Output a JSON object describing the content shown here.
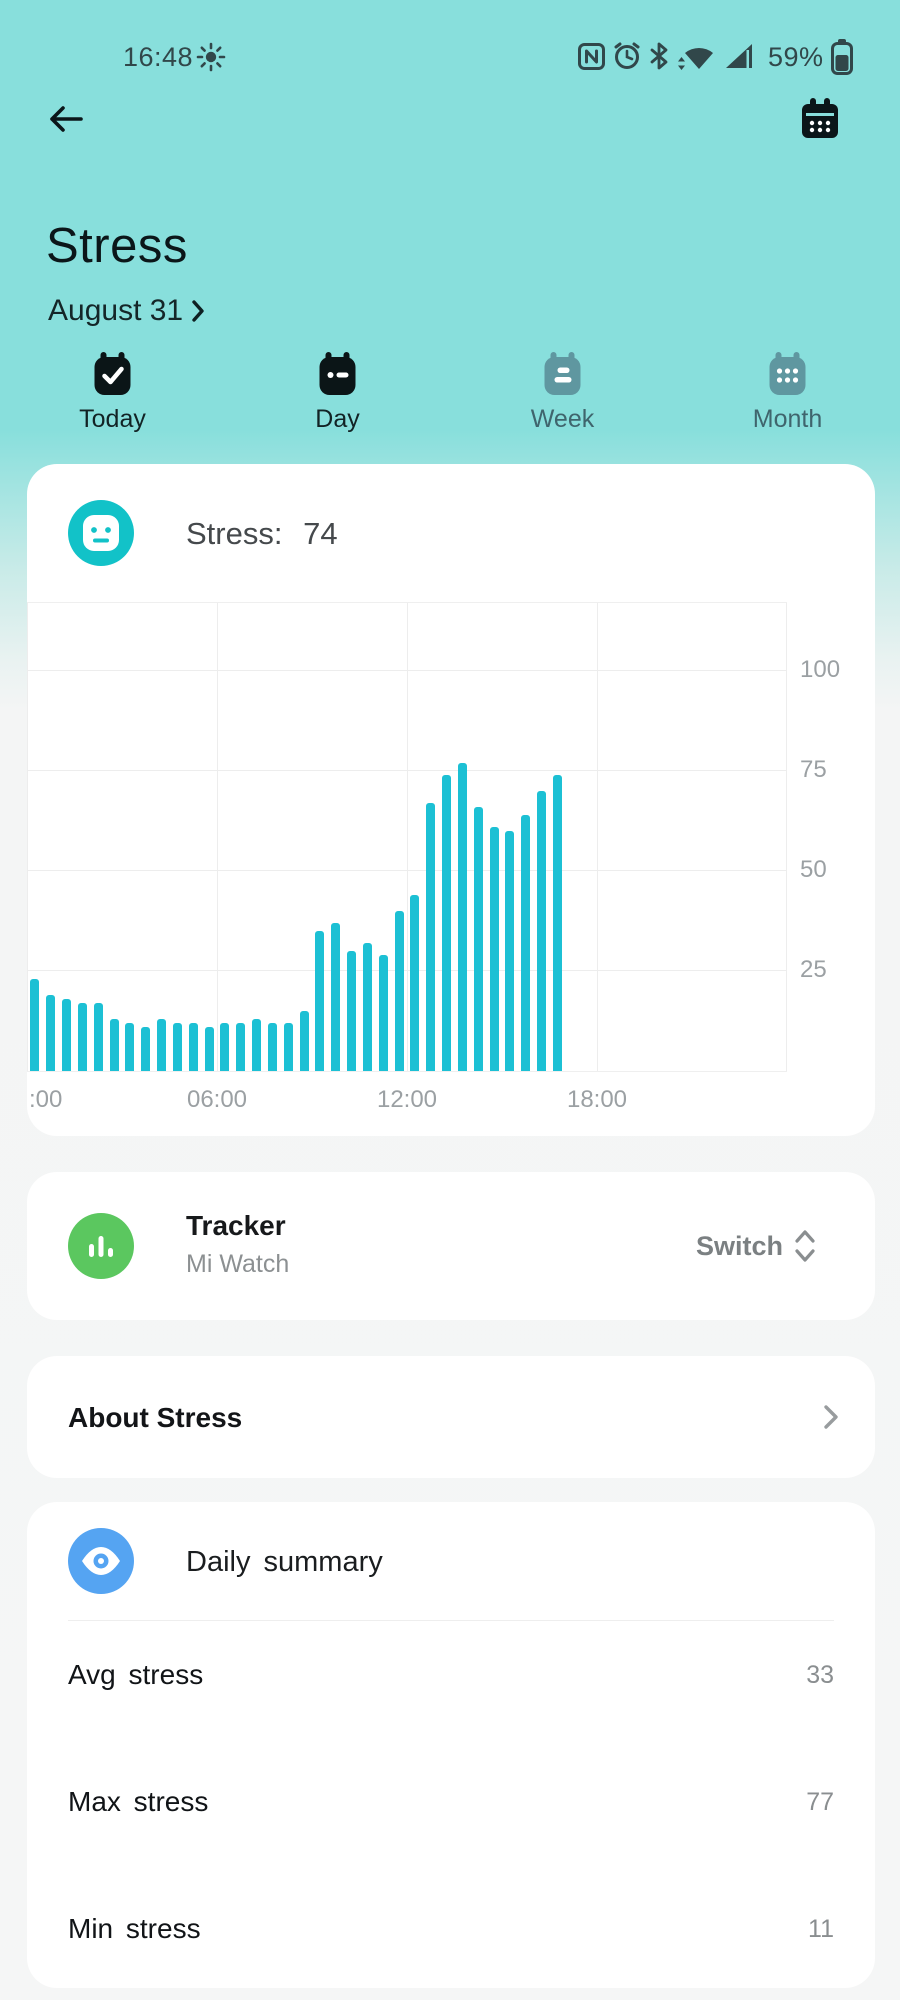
{
  "status_bar": {
    "time": "16:48",
    "battery_label": "59%",
    "icons": [
      "brightness-icon",
      "nfc-icon",
      "alarm-icon",
      "bluetooth-icon",
      "wifi-icon",
      "signal-icon",
      "battery-icon"
    ]
  },
  "header": {
    "title": "Stress",
    "date": "August 31",
    "back_icon": "back-arrow-icon",
    "calendar_icon": "calendar-icon"
  },
  "tabs": [
    {
      "id": "today",
      "label": "Today",
      "glyph": "check",
      "emphasized": true
    },
    {
      "id": "day",
      "label": "Day",
      "glyph": "day",
      "emphasized": true
    },
    {
      "id": "week",
      "label": "Week",
      "glyph": "week",
      "emphasized": false
    },
    {
      "id": "month",
      "label": "Month",
      "glyph": "month",
      "emphasized": false
    }
  ],
  "summary_card": {
    "label": "Stress:",
    "value": "74",
    "icon": "stress-face-icon"
  },
  "chart_data": {
    "type": "bar",
    "title": "Stress: 74",
    "x_axis": {
      "range_hours": [
        0,
        24
      ],
      "grid_hours": [
        0,
        6,
        12,
        18,
        24
      ],
      "tick_labels": [
        ":00",
        "06:00",
        "12:00",
        "18:00"
      ],
      "tick_hours": [
        0,
        6,
        12,
        18
      ],
      "start_hour": 0.25,
      "interval_hours": 0.5
    },
    "y_axis": {
      "ticks": [
        25,
        50,
        75,
        100
      ],
      "max": 117
    },
    "values": [
      23,
      19,
      18,
      17,
      17,
      13,
      12,
      11,
      13,
      12,
      12,
      11,
      12,
      12,
      13,
      12,
      12,
      15,
      35,
      37,
      30,
      32,
      29,
      40,
      44,
      67,
      74,
      77,
      66,
      61,
      60,
      64,
      70,
      74
    ],
    "bar_color": "#1cc0d4",
    "grid": true,
    "legend": "none"
  },
  "tracker_card": {
    "title": "Tracker",
    "subtitle": "Mi Watch",
    "action_label": "Switch",
    "icon": "tracker-bars-icon"
  },
  "about_card": {
    "label": "About Stress"
  },
  "daily_summary": {
    "title": "Daily summary",
    "icon": "eye-icon",
    "rows": [
      {
        "label": "Avg stress",
        "value": "33"
      },
      {
        "label": "Max stress",
        "value": "77"
      },
      {
        "label": "Min stress",
        "value": "11"
      }
    ]
  },
  "colors": {
    "background_teal": "#88dfdc",
    "page_gray": "#f5f6f6",
    "bar_cyan": "#1cc0d4",
    "stress_circle": "#12c2c8",
    "tracker_green": "#5bc75f",
    "summary_blue": "#55a4f2",
    "status_icon": "#31474a",
    "muted_tab": "#5f97a0",
    "axis_text": "#9ba0a3"
  }
}
